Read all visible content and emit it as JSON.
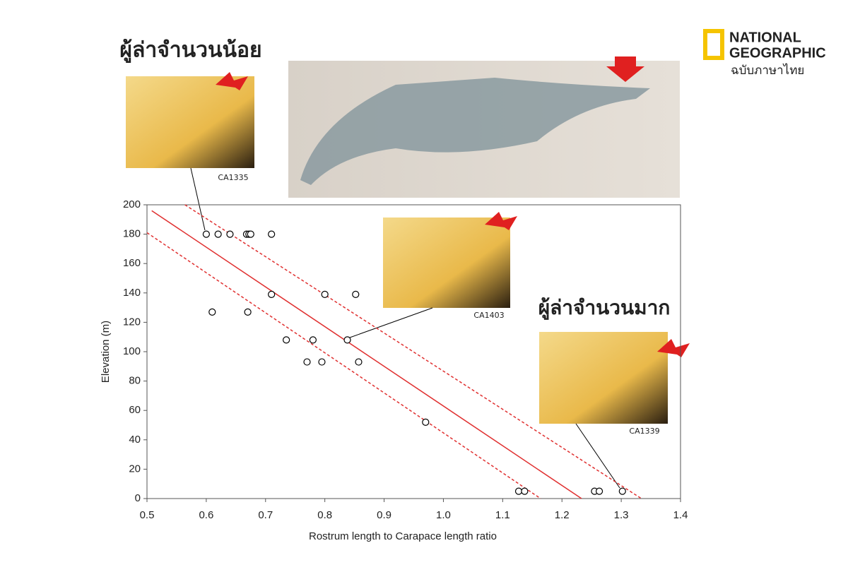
{
  "chart_data": {
    "type": "scatter",
    "xlabel": "Rostrum length to Carapace length ratio",
    "ylabel": "Elevation (m)",
    "x": [
      0.6,
      0.62,
      0.64,
      0.668,
      0.672,
      0.675,
      0.71,
      0.61,
      0.67,
      0.71,
      0.8,
      0.852,
      0.735,
      0.78,
      0.838,
      0.77,
      0.795,
      0.857,
      0.97,
      1.127,
      1.137,
      1.255,
      1.263,
      1.302
    ],
    "values": [
      180,
      180,
      180,
      180,
      180,
      180,
      180,
      127,
      127,
      139,
      139,
      139,
      108,
      108,
      108,
      93,
      93,
      93,
      52,
      5,
      5,
      5,
      5,
      5
    ],
    "color": "#000000",
    "fit_lines": [
      {
        "style": "solid",
        "color": "#e03030",
        "x": [
          0.508,
          1.233
        ],
        "y": [
          196,
          0
        ]
      },
      {
        "style": "dashed",
        "color": "#e03030",
        "x": [
          0.564,
          1.334
        ],
        "y": [
          200,
          0
        ]
      },
      {
        "style": "dashed",
        "color": "#e03030",
        "x": [
          0.5,
          1.164
        ],
        "y": [
          181,
          0
        ]
      }
    ],
    "xlim": [
      0.5,
      1.4
    ],
    "xticks": [
      0.5,
      0.6,
      0.7,
      0.8,
      0.9,
      {
        "value": 1,
        "label": "1.0"
      },
      1.1,
      1.2,
      1.3,
      1.4
    ],
    "ylim": [
      0,
      200
    ],
    "yticks": [
      0,
      20,
      40,
      60,
      80,
      100,
      120,
      140,
      160,
      180,
      200
    ],
    "grid": false
  },
  "annotations": {
    "few_predators": "ผู้ล่าจำนวนน้อย",
    "many_predators": "ผู้ล่าจำนวนมาก",
    "photo_1": "CA1335",
    "photo_2": "CA1403",
    "photo_3": "CA1339"
  },
  "logo": {
    "line_1": "NATIONAL",
    "line_2": "GEOGRAPHIC",
    "line_3": "ฉบับภาษาไทย"
  }
}
